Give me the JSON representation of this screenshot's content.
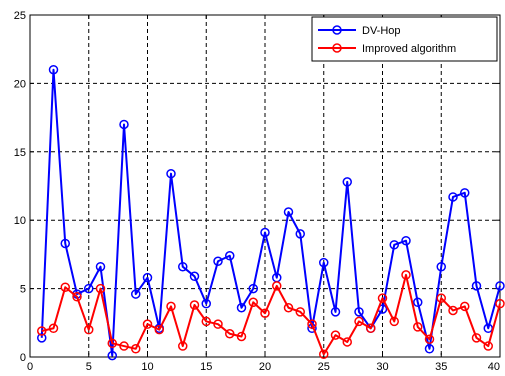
{
  "chart_data": {
    "type": "line",
    "x": [
      1,
      2,
      3,
      4,
      5,
      6,
      7,
      8,
      9,
      10,
      11,
      12,
      13,
      14,
      15,
      16,
      17,
      18,
      19,
      20,
      21,
      22,
      23,
      24,
      25,
      26,
      27,
      28,
      29,
      30,
      31,
      32,
      33,
      34,
      35,
      36,
      37,
      38,
      39,
      40
    ],
    "series": [
      {
        "name": "DV-Hop",
        "color": "#0000ff",
        "values": [
          1.4,
          21.0,
          8.3,
          4.6,
          5.0,
          6.6,
          0.1,
          17.0,
          4.6,
          5.8,
          2.1,
          13.4,
          6.6,
          5.9,
          3.9,
          7.0,
          7.4,
          3.6,
          5.0,
          9.1,
          5.8,
          10.6,
          9.0,
          2.1,
          6.9,
          3.3,
          12.8,
          3.3,
          2.1,
          3.5,
          8.2,
          8.5,
          4.0,
          0.6,
          6.6,
          11.7,
          12.0,
          5.2,
          2.1,
          5.2
        ]
      },
      {
        "name": "Improved algorithm",
        "color": "#ff0000",
        "values": [
          1.9,
          2.1,
          5.1,
          4.4,
          2.0,
          5.0,
          1.0,
          0.8,
          0.6,
          2.4,
          2.0,
          3.7,
          0.8,
          3.8,
          2.6,
          2.4,
          1.7,
          1.5,
          4.0,
          3.2,
          5.2,
          3.6,
          3.3,
          2.4,
          0.2,
          1.6,
          1.1,
          2.6,
          2.1,
          4.3,
          2.6,
          6.0,
          2.2,
          1.3,
          4.3,
          3.4,
          3.7,
          1.4,
          0.8,
          3.9
        ]
      }
    ],
    "xlim": [
      0,
      40
    ],
    "ylim": [
      0,
      25
    ],
    "xticks": [
      0,
      5,
      10,
      15,
      20,
      25,
      30,
      35,
      40
    ],
    "yticks": [
      0,
      5,
      10,
      15,
      20,
      25
    ],
    "xlabel": "",
    "ylabel": "",
    "title": "",
    "grid": true,
    "legend": "top-right"
  }
}
